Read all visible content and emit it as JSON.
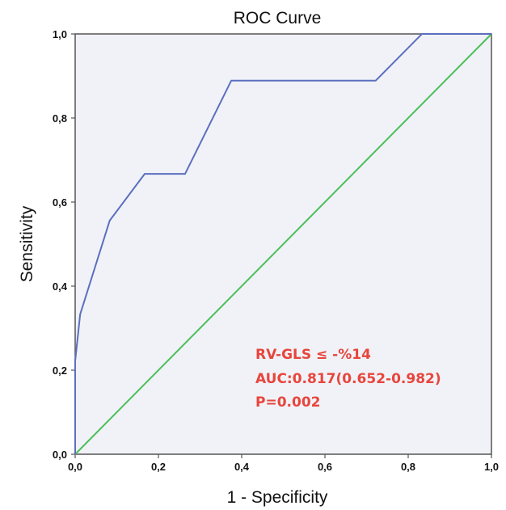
{
  "chart_data": {
    "type": "line",
    "title": "ROC Curve",
    "xlabel": "1 - Specificity",
    "ylabel": "Sensitivity",
    "xlim": [
      0,
      1
    ],
    "ylim": [
      0,
      1
    ],
    "x_ticks": [
      "0,0",
      "0,2",
      "0,4",
      "0,6",
      "0,8",
      "1,0"
    ],
    "y_ticks": [
      "0,0",
      "0,2",
      "0,4",
      "0,6",
      "0,8",
      "1,0"
    ],
    "grid": false,
    "series": [
      {
        "color": "#5b6fbf",
        "points": [
          [
            0.0,
            0.0
          ],
          [
            0.0,
            0.222
          ],
          [
            0.012,
            0.333
          ],
          [
            0.083,
            0.556
          ],
          [
            0.167,
            0.667
          ],
          [
            0.264,
            0.667
          ],
          [
            0.375,
            0.889
          ],
          [
            0.722,
            0.889
          ],
          [
            0.833,
            1.0
          ],
          [
            1.0,
            1.0
          ]
        ]
      },
      {
        "color": "#4cbf5a",
        "points": [
          [
            0.0,
            0.0
          ],
          [
            1.0,
            1.0
          ]
        ]
      }
    ],
    "annotations": [
      "RV-GLS ≤ -%14",
      "AUC:0.817(0.652-0.982)",
      "P=0.002"
    ],
    "plot_background": "#f0f2f7",
    "annotation_color": "#e8453c"
  }
}
